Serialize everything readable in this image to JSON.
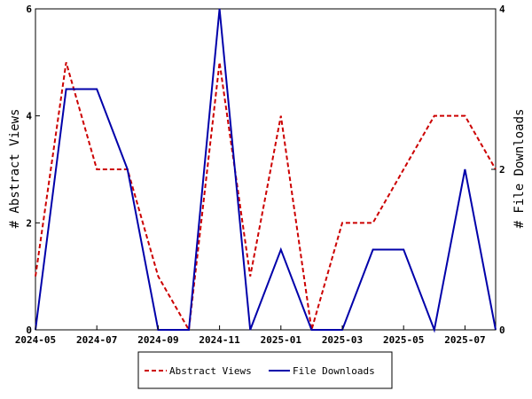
{
  "chart_data": {
    "type": "line",
    "x": [
      "2024-05",
      "2024-06",
      "2024-07",
      "2024-08",
      "2024-09",
      "2024-10",
      "2024-11",
      "2024-12",
      "2025-01",
      "2025-02",
      "2025-03",
      "2025-04",
      "2025-05",
      "2025-06",
      "2025-07",
      "2025-08"
    ],
    "x_tick_labels": [
      "2024-05",
      "2024-07",
      "2024-09",
      "2024-11",
      "2025-01",
      "2025-03",
      "2025-05",
      "2025-07"
    ],
    "series": [
      {
        "name": "Abstract Views",
        "axis": "left",
        "color": "#cc0000",
        "dash": "dashed",
        "values": [
          1,
          5,
          3,
          3,
          1,
          0,
          5,
          1,
          4,
          0,
          2,
          2,
          3,
          4,
          4,
          3
        ]
      },
      {
        "name": "File Downloads",
        "axis": "right",
        "color": "#0000aa",
        "dash": "solid",
        "values": [
          0,
          3,
          3,
          2,
          0,
          0,
          4,
          0,
          1,
          0,
          0,
          1,
          1,
          0,
          2,
          0
        ]
      }
    ],
    "ylabel": "# Abstract Views",
    "ylabel_right": "# File Downloads",
    "ylim": [
      0,
      6
    ],
    "ylim_right": [
      0,
      4
    ],
    "yticks": [
      0,
      2,
      4,
      6
    ],
    "yticks_right": [
      0,
      2,
      4
    ],
    "grid": false,
    "legend_position": "bottom-center"
  }
}
